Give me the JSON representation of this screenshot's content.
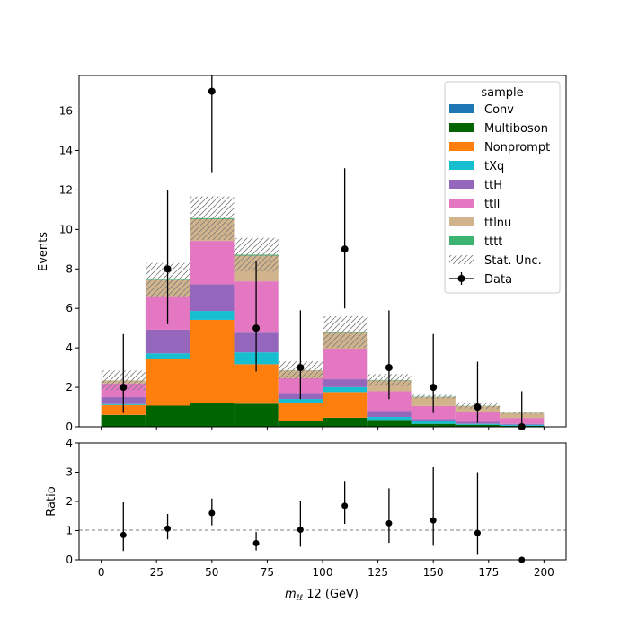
{
  "chart_data": {
    "type": "bar",
    "stacked": true,
    "bin_edges": [
      0,
      20,
      40,
      60,
      80,
      100,
      120,
      140,
      160,
      180,
      200
    ],
    "x": [
      10,
      30,
      50,
      70,
      90,
      110,
      130,
      150,
      170,
      190
    ],
    "xlabel_main": "m",
    "xlabel_sub": "ℓℓ",
    "xlabel_rest": " 12 (GeV)",
    "ylabel": "Events",
    "ylim": [
      0,
      17.8
    ],
    "xlim": [
      -10,
      210
    ],
    "xticks": [
      "0",
      "25",
      "50",
      "75",
      "100",
      "125",
      "150",
      "175",
      "200"
    ],
    "yticks": [
      "0",
      "2",
      "4",
      "6",
      "8",
      "10",
      "12",
      "14",
      "16"
    ],
    "series": [
      {
        "name": "Conv",
        "color": "#1f77b4",
        "values": [
          0.0,
          0.02,
          0.02,
          0.02,
          0.01,
          0.01,
          0.0,
          0.0,
          0.0,
          0.0
        ]
      },
      {
        "name": "Multiboson",
        "color": "#006400",
        "values": [
          0.6,
          1.05,
          1.2,
          1.15,
          0.3,
          0.45,
          0.35,
          0.15,
          0.1,
          0.05
        ]
      },
      {
        "name": "Nonprompt",
        "color": "#ff7f0e",
        "values": [
          0.5,
          2.35,
          4.2,
          2.0,
          0.9,
          1.3,
          0.0,
          0.0,
          0.0,
          0.0
        ]
      },
      {
        "name": "tXq",
        "color": "#17becf",
        "values": [
          0.05,
          0.3,
          0.45,
          0.6,
          0.2,
          0.25,
          0.15,
          0.15,
          0.05,
          0.05
        ]
      },
      {
        "name": "ttH",
        "color": "#9467bd",
        "values": [
          0.35,
          1.2,
          1.35,
          1.0,
          0.3,
          0.4,
          0.3,
          0.1,
          0.1,
          0.05
        ]
      },
      {
        "name": "ttll",
        "color": "#e377c2",
        "values": [
          0.7,
          1.7,
          2.2,
          2.6,
          0.75,
          1.55,
          1.0,
          0.65,
          0.5,
          0.3
        ]
      },
      {
        "name": "ttlnu",
        "color": "#d2b48c",
        "values": [
          0.15,
          0.8,
          1.1,
          1.3,
          0.4,
          0.8,
          0.55,
          0.45,
          0.3,
          0.25
        ]
      },
      {
        "name": "tttt",
        "color": "#3cb371",
        "values": [
          0.0,
          0.03,
          0.05,
          0.05,
          0.01,
          0.04,
          0.02,
          0.02,
          0.01,
          0.01
        ]
      }
    ],
    "stat_unc": [
      0.5,
      0.85,
      1.1,
      0.85,
      0.45,
      0.8,
      0.3,
      0.1,
      0.15,
      0.05
    ],
    "data": {
      "name": "Data",
      "values": [
        2,
        8,
        17,
        5,
        3,
        9,
        3,
        2,
        1,
        0
      ],
      "err_low": [
        1.3,
        2.8,
        4.1,
        2.2,
        1.6,
        3.0,
        1.6,
        1.3,
        0.8,
        0.0
      ],
      "err_high": [
        2.7,
        4.0,
        5.2,
        3.4,
        2.9,
        4.1,
        2.9,
        2.7,
        2.3,
        1.8
      ]
    },
    "stat_unc_label": "Stat. Unc.",
    "legend": {
      "title": "sample",
      "placement": "top-right"
    },
    "ratio": {
      "ylabel": "Ratio",
      "ylim": [
        0,
        4
      ],
      "yticks": [
        "0",
        "1",
        "2",
        "3",
        "4"
      ],
      "reference": 1,
      "values": [
        0.85,
        1.07,
        1.6,
        0.57,
        1.03,
        1.85,
        1.25,
        1.35,
        0.92,
        0.0
      ],
      "err_low": [
        0.55,
        0.37,
        0.42,
        0.25,
        0.58,
        0.62,
        0.67,
        0.87,
        0.75,
        0.0
      ],
      "err_high": [
        1.12,
        0.5,
        0.5,
        0.38,
        0.98,
        0.85,
        1.2,
        1.82,
        2.08,
        0.0
      ]
    }
  }
}
